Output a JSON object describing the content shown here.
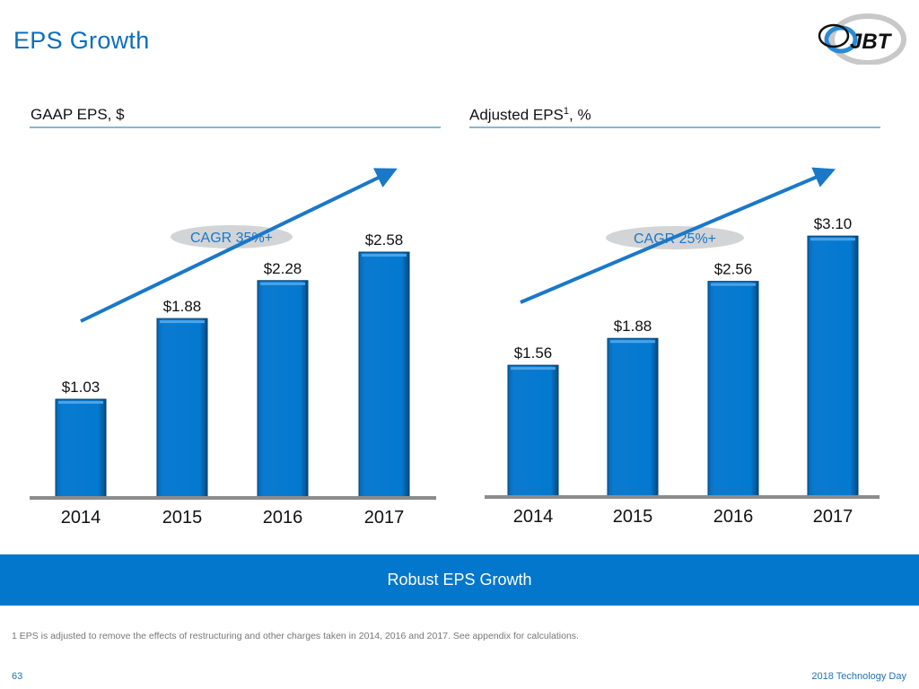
{
  "slide": {
    "title": "EPS Growth",
    "banner": "Robust EPS Growth",
    "footnote": "1 EPS is adjusted to remove the effects of restructuring and other charges taken in 2014, 2016 and 2017.  See appendix for calculations.",
    "page_number": "63",
    "event": "2018 Technology Day",
    "logo_text": "JBT",
    "colors": {
      "accent": "#0a6fbf",
      "bar": "#0277cc",
      "banner": "#0277cc",
      "oval": "#d2d4d6",
      "axis": "#8c8c8c"
    }
  },
  "chart_data": [
    {
      "type": "bar",
      "title": "GAAP EPS, $",
      "title_superscript": "",
      "categories": [
        "2014",
        "2015",
        "2016",
        "2017"
      ],
      "values": [
        1.03,
        1.88,
        2.28,
        2.58
      ],
      "labels": [
        "$1.03",
        "$1.88",
        "$2.28",
        "$2.58"
      ],
      "annotation": "CAGR 35%+",
      "xlabel": "",
      "ylabel": "",
      "ylim": [
        0,
        2.6
      ],
      "grid": false
    },
    {
      "type": "bar",
      "title": "Adjusted EPS",
      "title_superscript": "1",
      "title_suffix": ", %",
      "categories": [
        "2014",
        "2015",
        "2016",
        "2017"
      ],
      "values": [
        1.56,
        1.88,
        2.56,
        3.1
      ],
      "labels": [
        "$1.56",
        "$1.88",
        "$2.56",
        "$3.10"
      ],
      "annotation": "CAGR 25%+",
      "xlabel": "",
      "ylabel": "",
      "ylim": [
        0,
        3.1
      ],
      "grid": false
    }
  ]
}
